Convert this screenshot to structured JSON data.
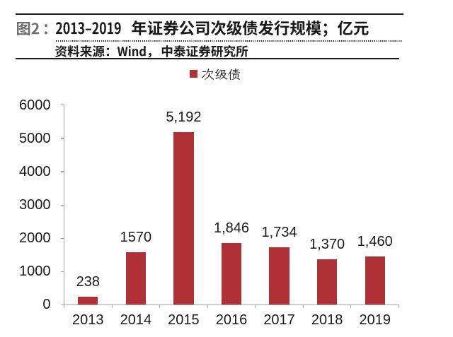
{
  "report": {
    "figure_label": "图2：",
    "title": "2013–2019 年证券公司次级债发行规模；亿元",
    "source": "资料来源：Wind，中泰证券研究所",
    "legend": "次级债"
  },
  "colors": {
    "bar": "#AF3035",
    "axis": "#A6A6A6",
    "text": "#1A1A1A",
    "figure_label": "#6E6E6E",
    "rule": "#1A1A1A"
  },
  "chart_data": {
    "type": "bar",
    "title": "2013–2019 年证券公司次级债发行规模；亿元",
    "unit": "亿元",
    "categories": [
      "2013",
      "2014",
      "2015",
      "2016",
      "2017",
      "2018",
      "2019"
    ],
    "series": [
      {
        "name": "次级债",
        "values": [
          238,
          1570,
          5192,
          1846,
          1734,
          1370,
          1460
        ]
      }
    ],
    "data_labels": [
      "238",
      "1570",
      "5,192",
      "1,846",
      "1,734",
      "1,370",
      "1,460"
    ],
    "yticks": [
      0,
      1000,
      2000,
      3000,
      4000,
      5000,
      6000
    ],
    "ylim": [
      0,
      6000
    ],
    "xlabel": "",
    "ylabel": "",
    "grid": false,
    "legend_position": "top"
  }
}
